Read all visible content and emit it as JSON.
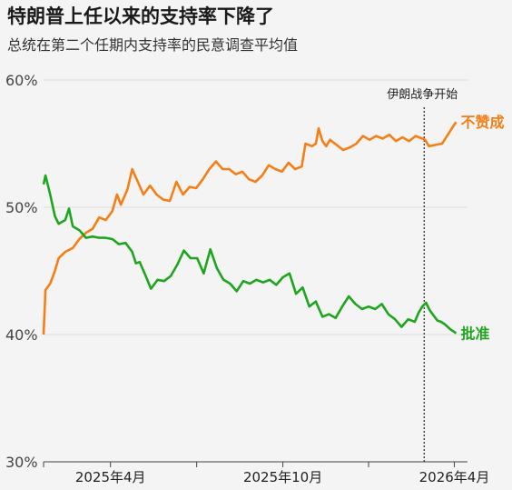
{
  "title": "特朗普上任以来的支持率下降了",
  "subtitle": "总统在第二个任期内支持率的民意调查平均值",
  "colors": {
    "approve": "#1ea51e",
    "disapprove": "#f57f17",
    "event_line": "#222222",
    "grid": "#dddddd",
    "axis": "#444444"
  },
  "chart_data": {
    "type": "line",
    "title": "特朗普上任以来的支持率下降了",
    "subtitle": "总统在第二个任期内支持率的民意调查平均值",
    "xlabel": "",
    "ylabel": "",
    "ylim": [
      30,
      60
    ],
    "yticks": [
      30,
      40,
      50,
      60
    ],
    "ytick_labels": [
      "30%",
      "40%",
      "50%",
      "60%"
    ],
    "xlim": [
      "2025-01-20",
      "2026-04-15"
    ],
    "xticks": [
      "2025-04-01",
      "2025-10-01",
      "2026-04-01"
    ],
    "xtick_labels": [
      "2025年4月",
      "2025年10月",
      "2026年4月"
    ],
    "grid": "horizontal",
    "annotations": [
      {
        "x": "2026-02-28",
        "text": "伊朗战争开始",
        "style": "dotted-vertical-line"
      }
    ],
    "series": [
      {
        "name": "不赞成",
        "color": "#f57f17",
        "points": [
          [
            "2025-01-20",
            40.0
          ],
          [
            "2025-01-22",
            43.5
          ],
          [
            "2025-01-27",
            44.0
          ],
          [
            "2025-02-01",
            45.0
          ],
          [
            "2025-02-05",
            46.0
          ],
          [
            "2025-02-12",
            46.5
          ],
          [
            "2025-02-20",
            46.8
          ],
          [
            "2025-02-27",
            47.5
          ],
          [
            "2025-03-06",
            48.0
          ],
          [
            "2025-03-13",
            48.3
          ],
          [
            "2025-03-20",
            49.2
          ],
          [
            "2025-03-27",
            49.0
          ],
          [
            "2025-04-03",
            49.7
          ],
          [
            "2025-04-08",
            51.0
          ],
          [
            "2025-04-12",
            50.2
          ],
          [
            "2025-04-19",
            51.4
          ],
          [
            "2025-04-24",
            53.0
          ],
          [
            "2025-04-30",
            52.0
          ],
          [
            "2025-05-06",
            51.0
          ],
          [
            "2025-05-13",
            51.7
          ],
          [
            "2025-05-20",
            51.0
          ],
          [
            "2025-05-27",
            50.6
          ],
          [
            "2025-06-03",
            50.5
          ],
          [
            "2025-06-10",
            52.0
          ],
          [
            "2025-06-17",
            51.0
          ],
          [
            "2025-06-24",
            51.6
          ],
          [
            "2025-07-01",
            51.5
          ],
          [
            "2025-07-08",
            52.2
          ],
          [
            "2025-07-15",
            53.0
          ],
          [
            "2025-07-22",
            53.6
          ],
          [
            "2025-07-29",
            53.0
          ],
          [
            "2025-08-05",
            53.0
          ],
          [
            "2025-08-12",
            52.6
          ],
          [
            "2025-08-19",
            52.8
          ],
          [
            "2025-08-26",
            52.2
          ],
          [
            "2025-09-02",
            52.0
          ],
          [
            "2025-09-09",
            52.5
          ],
          [
            "2025-09-16",
            53.3
          ],
          [
            "2025-09-23",
            53.0
          ],
          [
            "2025-09-30",
            52.8
          ],
          [
            "2025-10-07",
            53.5
          ],
          [
            "2025-10-14",
            53.0
          ],
          [
            "2025-10-21",
            53.2
          ],
          [
            "2025-10-25",
            55.0
          ],
          [
            "2025-11-01",
            54.8
          ],
          [
            "2025-11-05",
            55.0
          ],
          [
            "2025-11-08",
            56.2
          ],
          [
            "2025-11-12",
            55.2
          ],
          [
            "2025-11-16",
            54.8
          ],
          [
            "2025-11-20",
            55.3
          ],
          [
            "2025-11-27",
            54.9
          ],
          [
            "2025-12-04",
            54.5
          ],
          [
            "2025-12-11",
            54.7
          ],
          [
            "2025-12-18",
            55.0
          ],
          [
            "2025-12-25",
            55.6
          ],
          [
            "2026-01-01",
            55.3
          ],
          [
            "2026-01-08",
            55.6
          ],
          [
            "2026-01-15",
            55.4
          ],
          [
            "2026-01-22",
            55.7
          ],
          [
            "2026-01-29",
            55.2
          ],
          [
            "2026-02-05",
            55.5
          ],
          [
            "2026-02-12",
            55.2
          ],
          [
            "2026-02-19",
            55.6
          ],
          [
            "2026-02-26",
            55.4
          ],
          [
            "2026-03-01",
            55.3
          ],
          [
            "2026-03-05",
            54.8
          ],
          [
            "2026-03-12",
            54.9
          ],
          [
            "2026-03-19",
            55.0
          ],
          [
            "2026-03-26",
            55.8
          ],
          [
            "2026-04-01",
            56.5
          ],
          [
            "2026-04-03",
            56.7
          ]
        ]
      },
      {
        "name": "批准",
        "color": "#1ea51e",
        "points": [
          [
            "2025-01-20",
            51.8
          ],
          [
            "2025-01-22",
            52.5
          ],
          [
            "2025-01-27",
            51.0
          ],
          [
            "2025-02-01",
            49.3
          ],
          [
            "2025-02-05",
            48.7
          ],
          [
            "2025-02-12",
            49.0
          ],
          [
            "2025-02-16",
            49.9
          ],
          [
            "2025-02-20",
            48.5
          ],
          [
            "2025-02-27",
            48.2
          ],
          [
            "2025-03-06",
            47.6
          ],
          [
            "2025-03-13",
            47.7
          ],
          [
            "2025-03-20",
            47.6
          ],
          [
            "2025-03-27",
            47.6
          ],
          [
            "2025-04-03",
            47.5
          ],
          [
            "2025-04-10",
            47.1
          ],
          [
            "2025-04-17",
            47.2
          ],
          [
            "2025-04-24",
            46.5
          ],
          [
            "2025-04-28",
            45.6
          ],
          [
            "2025-05-02",
            45.7
          ],
          [
            "2025-05-09",
            44.5
          ],
          [
            "2025-05-14",
            43.6
          ],
          [
            "2025-05-21",
            44.3
          ],
          [
            "2025-05-28",
            44.2
          ],
          [
            "2025-06-04",
            44.6
          ],
          [
            "2025-06-11",
            45.5
          ],
          [
            "2025-06-18",
            46.6
          ],
          [
            "2025-06-25",
            46.0
          ],
          [
            "2025-07-02",
            46.0
          ],
          [
            "2025-07-09",
            44.8
          ],
          [
            "2025-07-16",
            46.7
          ],
          [
            "2025-07-23",
            45.2
          ],
          [
            "2025-07-30",
            44.3
          ],
          [
            "2025-08-06",
            44.0
          ],
          [
            "2025-08-13",
            43.4
          ],
          [
            "2025-08-20",
            44.2
          ],
          [
            "2025-08-27",
            44.0
          ],
          [
            "2025-09-03",
            44.3
          ],
          [
            "2025-09-10",
            44.1
          ],
          [
            "2025-09-17",
            44.3
          ],
          [
            "2025-09-24",
            43.9
          ],
          [
            "2025-10-01",
            44.5
          ],
          [
            "2025-10-08",
            44.8
          ],
          [
            "2025-10-15",
            43.2
          ],
          [
            "2025-10-22",
            43.7
          ],
          [
            "2025-10-29",
            42.2
          ],
          [
            "2025-11-05",
            42.6
          ],
          [
            "2025-11-12",
            41.4
          ],
          [
            "2025-11-19",
            41.6
          ],
          [
            "2025-11-26",
            41.3
          ],
          [
            "2025-12-03",
            42.2
          ],
          [
            "2025-12-10",
            43.0
          ],
          [
            "2025-12-17",
            42.4
          ],
          [
            "2025-12-24",
            42.0
          ],
          [
            "2025-12-31",
            42.2
          ],
          [
            "2026-01-07",
            42.0
          ],
          [
            "2026-01-14",
            42.4
          ],
          [
            "2026-01-21",
            41.6
          ],
          [
            "2026-01-28",
            41.2
          ],
          [
            "2026-02-04",
            40.6
          ],
          [
            "2026-02-11",
            41.2
          ],
          [
            "2026-02-18",
            41.0
          ],
          [
            "2026-02-22",
            41.7
          ],
          [
            "2026-02-26",
            42.2
          ],
          [
            "2026-03-02",
            42.5
          ],
          [
            "2026-03-06",
            41.9
          ],
          [
            "2026-03-10",
            41.5
          ],
          [
            "2026-03-14",
            41.1
          ],
          [
            "2026-03-18",
            41.0
          ],
          [
            "2026-03-22",
            40.8
          ],
          [
            "2026-03-28",
            40.4
          ],
          [
            "2026-04-03",
            40.1
          ]
        ]
      }
    ]
  }
}
